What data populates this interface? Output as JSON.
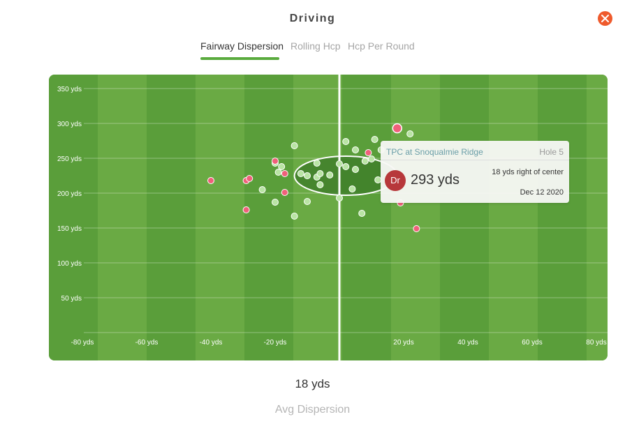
{
  "header": {
    "title": "Driving",
    "close_icon": "close-icon",
    "accent": "#ef5a2c"
  },
  "tabs": [
    {
      "label": "Fairway Dispersion",
      "active": true
    },
    {
      "label": "Rolling Hcp",
      "active": false
    },
    {
      "label": "Hcp Per Round",
      "active": false
    }
  ],
  "chart_data": {
    "type": "scatter",
    "title": "",
    "xlabel": "",
    "ylabel": "",
    "xlim": [
      -80,
      80
    ],
    "ylim": [
      0,
      350
    ],
    "x_ticks": [
      -80,
      -60,
      -40,
      -20,
      20,
      40,
      60,
      80
    ],
    "x_tick_labels": [
      "-80 yds",
      "-60 yds",
      "-40 yds",
      "-20 yds",
      "20 yds",
      "40 yds",
      "60 yds",
      "80 yds"
    ],
    "y_ticks": [
      50,
      100,
      150,
      200,
      250,
      300,
      350
    ],
    "y_tick_labels": [
      "50 yds",
      "100 yds",
      "150 yds",
      "200 yds",
      "250 yds",
      "300 yds",
      "350 yds"
    ],
    "grid": true,
    "colors": {
      "fairway": "#5a9e3a",
      "rough": "#6aaa44",
      "ellipse": "#3f7f2a",
      "fairway_hit": "#b9e4a4",
      "miss": "#f0607a"
    },
    "dispersion_ellipse": {
      "center_x": 2,
      "center_y": 225,
      "radius_x": 16,
      "radius_y": 28
    },
    "series": [
      {
        "points": [
          {
            "x": -14,
            "y": 268
          },
          {
            "x": -20,
            "y": 243
          },
          {
            "x": -18,
            "y": 238
          },
          {
            "x": -19,
            "y": 230
          },
          {
            "x": -24,
            "y": 205
          },
          {
            "x": -20,
            "y": 187
          },
          {
            "x": -14,
            "y": 167
          },
          {
            "x": -10,
            "y": 188
          },
          {
            "x": -12,
            "y": 228
          },
          {
            "x": -10,
            "y": 225
          },
          {
            "x": -7,
            "y": 243
          },
          {
            "x": -7,
            "y": 223
          },
          {
            "x": -6,
            "y": 228
          },
          {
            "x": -6,
            "y": 212
          },
          {
            "x": -3,
            "y": 226
          },
          {
            "x": 0,
            "y": 242
          },
          {
            "x": 2,
            "y": 238
          },
          {
            "x": 0,
            "y": 193
          },
          {
            "x": 2,
            "y": 274
          },
          {
            "x": 5,
            "y": 262
          },
          {
            "x": 5,
            "y": 234
          },
          {
            "x": 4,
            "y": 206
          },
          {
            "x": 7,
            "y": 171
          },
          {
            "x": 8,
            "y": 246
          },
          {
            "x": 10,
            "y": 249
          },
          {
            "x": 11,
            "y": 277
          },
          {
            "x": 12,
            "y": 219
          },
          {
            "x": 13,
            "y": 262
          },
          {
            "x": 22,
            "y": 285
          }
        ]
      },
      {
        "points": [
          {
            "x": -40,
            "y": 218
          },
          {
            "x": -29,
            "y": 218
          },
          {
            "x": -28,
            "y": 221
          },
          {
            "x": -29,
            "y": 176
          },
          {
            "x": -20,
            "y": 246
          },
          {
            "x": -17,
            "y": 228
          },
          {
            "x": -17,
            "y": 201
          },
          {
            "x": 9,
            "y": 258
          },
          {
            "x": 18,
            "y": 293
          },
          {
            "x": 19,
            "y": 186
          },
          {
            "x": 24,
            "y": 149
          }
        ]
      }
    ],
    "selected_point": {
      "x": 18,
      "y": 293
    }
  },
  "tooltip": {
    "course": "TPC at Snoqualmie Ridge",
    "hole": "Hole 5",
    "club": "Dr",
    "distance": "293 yds",
    "side": "18 yds right of center",
    "date": "Dec 12 2020"
  },
  "summary": {
    "value": "18 yds",
    "label": "Avg Dispersion"
  }
}
